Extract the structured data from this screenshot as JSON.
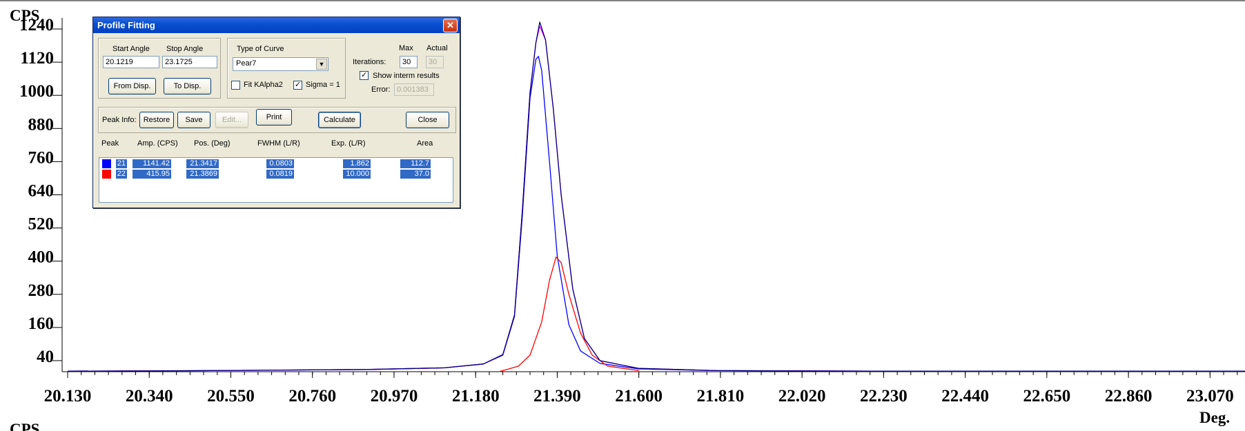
{
  "chart_data": {
    "type": "line",
    "title": "",
    "ylabel": "CPS",
    "xlabel": "Deg.",
    "x_ticks": [
      "20.130",
      "20.340",
      "20.550",
      "20.760",
      "20.970",
      "21.180",
      "21.390",
      "21.600",
      "21.810",
      "22.020",
      "22.230",
      "22.440",
      "22.650",
      "22.860",
      "23.070"
    ],
    "y_ticks": [
      "40",
      "160",
      "280",
      "400",
      "520",
      "640",
      "760",
      "880",
      "1000",
      "1120",
      "1240"
    ],
    "xlim": [
      20.13,
      23.16
    ],
    "ylim": [
      0,
      1280
    ],
    "grid": false,
    "series": [
      {
        "color": "#0000ff",
        "x": [
          20.13,
          20.5,
          20.9,
          21.1,
          21.2,
          21.25,
          21.28,
          21.3,
          21.32,
          21.335,
          21.3417,
          21.35,
          21.37,
          21.39,
          21.42,
          21.45,
          21.5,
          21.6,
          21.8,
          22.2,
          23.16
        ],
        "y": [
          2,
          4,
          8,
          14,
          28,
          60,
          200,
          560,
          990,
          1130,
          1141,
          1090,
          760,
          420,
          170,
          75,
          30,
          10,
          4,
          2,
          2
        ]
      },
      {
        "color": "#ff0000",
        "x": [
          21.24,
          21.29,
          21.32,
          21.35,
          21.37,
          21.3869,
          21.4,
          21.42,
          21.45,
          21.48,
          21.52,
          21.6
        ],
        "y": [
          0,
          20,
          60,
          180,
          330,
          415,
          395,
          280,
          140,
          60,
          20,
          4
        ]
      },
      {
        "color": "#ff00ff",
        "x": [
          20.13,
          20.5,
          20.9,
          21.1,
          21.2,
          21.25,
          21.28,
          21.3,
          21.32,
          21.335,
          21.345,
          21.36,
          21.38,
          21.4,
          21.43,
          21.46,
          21.5,
          21.6,
          21.8,
          22.2,
          23.16
        ],
        "y": [
          2,
          4,
          8,
          14,
          28,
          62,
          205,
          580,
          1010,
          1190,
          1250,
          1200,
          950,
          640,
          300,
          120,
          40,
          12,
          4,
          2,
          2
        ]
      },
      {
        "color": "#000080",
        "x": [
          20.13,
          20.5,
          20.9,
          21.1,
          21.2,
          21.25,
          21.28,
          21.3,
          21.32,
          21.335,
          21.345,
          21.36,
          21.38,
          21.4,
          21.43,
          21.46,
          21.5,
          21.6,
          21.8,
          22.2,
          23.16
        ],
        "y": [
          2,
          4,
          8,
          14,
          28,
          62,
          205,
          580,
          1010,
          1190,
          1265,
          1200,
          950,
          640,
          300,
          120,
          40,
          12,
          4,
          2,
          2
        ]
      }
    ],
    "legend": ""
  },
  "dialog": {
    "title": "Profile Fitting",
    "close_glyph": "✕",
    "start_angle_label": "Start Angle",
    "stop_angle_label": "Stop Angle",
    "start_angle_value": "20.1219",
    "stop_angle_value": "23.1725",
    "from_disp_label": "From Disp.",
    "to_disp_label": "To Disp.",
    "type_of_curve_label": "Type of Curve",
    "curve_value": "Pear7",
    "fit_kalpha2_label": "Fit KAlpha2",
    "fit_kalpha2_checked": "",
    "sigma_label": "Sigma = 1",
    "sigma_checked": "✓",
    "max_label": "Max",
    "actual_label": "Actual",
    "iterations_label": "Iterations:",
    "iterations_max": "30",
    "iterations_actual": "30",
    "show_interm_label": "Show interm results",
    "show_interm_checked": "✓",
    "error_label": "Error:",
    "error_value": "0.001383",
    "peak_info_label": "Peak Info:",
    "restore_label": "Restore",
    "save_label": "Save",
    "edit_label": "Edit...",
    "print_label": "Print",
    "calculate_label": "Calculate",
    "close_label": "Close",
    "columns": [
      "Peak",
      "Amp. (CPS)",
      "Pos. (Deg)",
      "FWHM (L/R)",
      "Exp. (L/R)",
      "Area"
    ],
    "rows": [
      {
        "color": "#0000ff",
        "peak": "21",
        "amp": "1141.42",
        "pos": "21.3417",
        "fwhm": "0.0803",
        "exp": "1.862",
        "area": "112.7"
      },
      {
        "color": "#ff0000",
        "peak": "22",
        "amp": "415.95",
        "pos": "21.3869",
        "fwhm": "0.0819",
        "exp": "10.000",
        "area": "37.0"
      }
    ]
  }
}
